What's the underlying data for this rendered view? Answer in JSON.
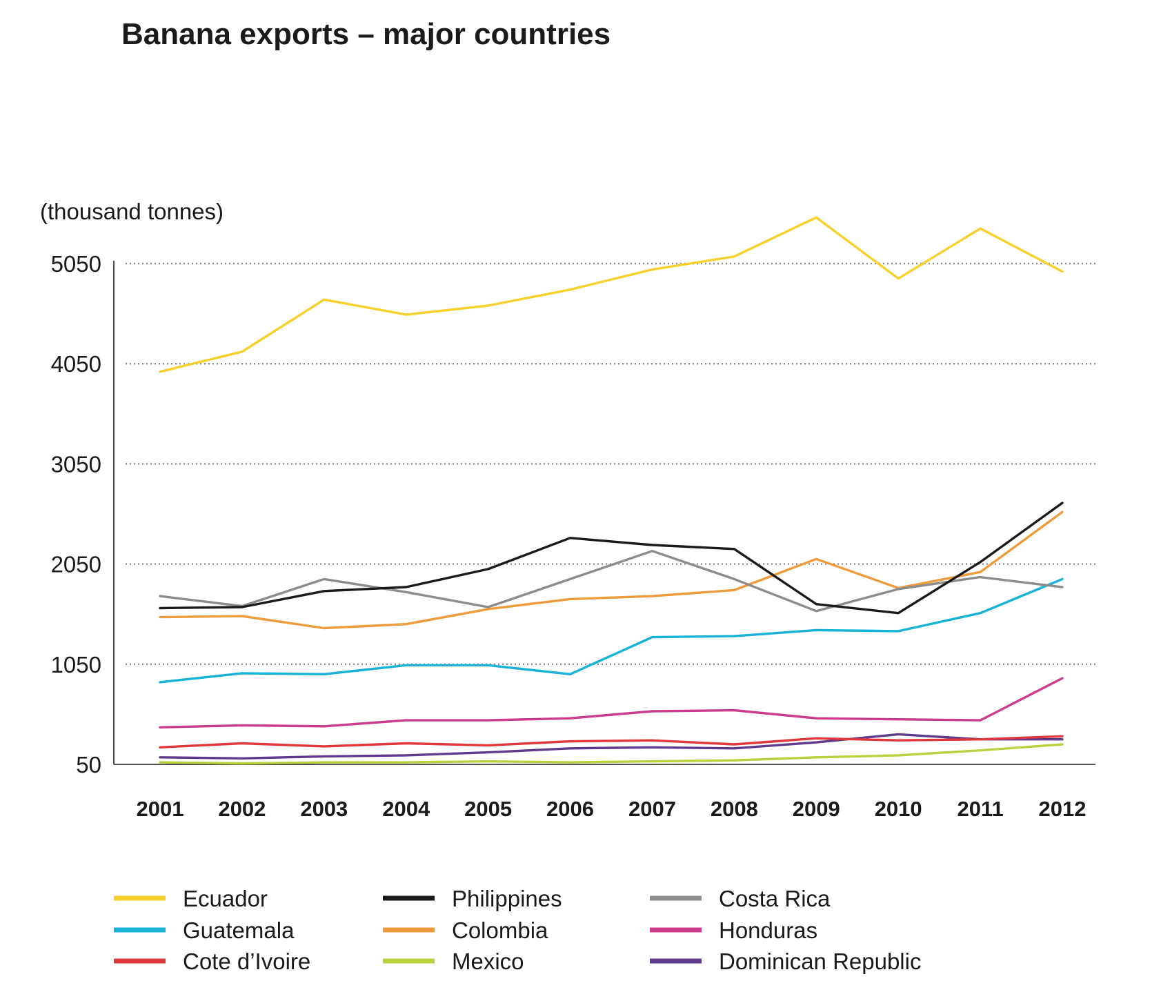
{
  "chart_data": {
    "type": "line",
    "title": "Banana exports – major countries",
    "ylabel": "(thousand tonnes)",
    "xlabel": "",
    "x": [
      "2001",
      "2002",
      "2003",
      "2004",
      "2005",
      "2006",
      "2007",
      "2008",
      "2009",
      "2010",
      "2011",
      "2012"
    ],
    "yticks": [
      "50",
      "1050",
      "2050",
      "3050",
      "4050",
      "5050"
    ],
    "ylim": [
      50,
      5050
    ],
    "grid": "horizontal dotted",
    "legend_position": "bottom",
    "series": [
      {
        "name": "Ecuador",
        "color": "#f7d02c",
        "values": [
          3970,
          4170,
          4690,
          4540,
          4630,
          4790,
          4990,
          5120,
          5510,
          4900,
          5400,
          4970
        ]
      },
      {
        "name": "Philippines",
        "color": "#1a1a1a",
        "values": [
          1610,
          1620,
          1780,
          1820,
          2000,
          2310,
          2240,
          2200,
          1650,
          1560,
          2070,
          2660
        ]
      },
      {
        "name": "Costa Rica",
        "color": "#8c8c8c",
        "values": [
          1730,
          1630,
          1900,
          1770,
          1620,
          1900,
          2180,
          1900,
          1580,
          1800,
          1920,
          1820
        ]
      },
      {
        "name": "Guatemala",
        "color": "#17b3d6",
        "values": [
          870,
          960,
          950,
          1040,
          1040,
          950,
          1320,
          1330,
          1390,
          1380,
          1560,
          1900
        ]
      },
      {
        "name": "Colombia",
        "color": "#ee9b3b",
        "values": [
          1520,
          1530,
          1410,
          1450,
          1600,
          1700,
          1730,
          1790,
          2100,
          1810,
          1970,
          2570
        ]
      },
      {
        "name": "Honduras",
        "color": "#cc3c8b",
        "values": [
          420,
          440,
          430,
          490,
          490,
          510,
          580,
          590,
          510,
          500,
          490,
          910
        ]
      },
      {
        "name": "Cote d’Ivoire",
        "color": "#e0373c",
        "values": [
          220,
          260,
          230,
          260,
          240,
          280,
          290,
          250,
          310,
          290,
          300,
          330
        ]
      },
      {
        "name": "Mexico",
        "color": "#b9d13d",
        "values": [
          70,
          60,
          70,
          70,
          80,
          70,
          80,
          90,
          120,
          140,
          190,
          250
        ]
      },
      {
        "name": "Dominican Republic",
        "color": "#5e3a8c",
        "values": [
          120,
          110,
          130,
          140,
          170,
          210,
          220,
          210,
          270,
          350,
          300,
          300
        ]
      }
    ]
  }
}
